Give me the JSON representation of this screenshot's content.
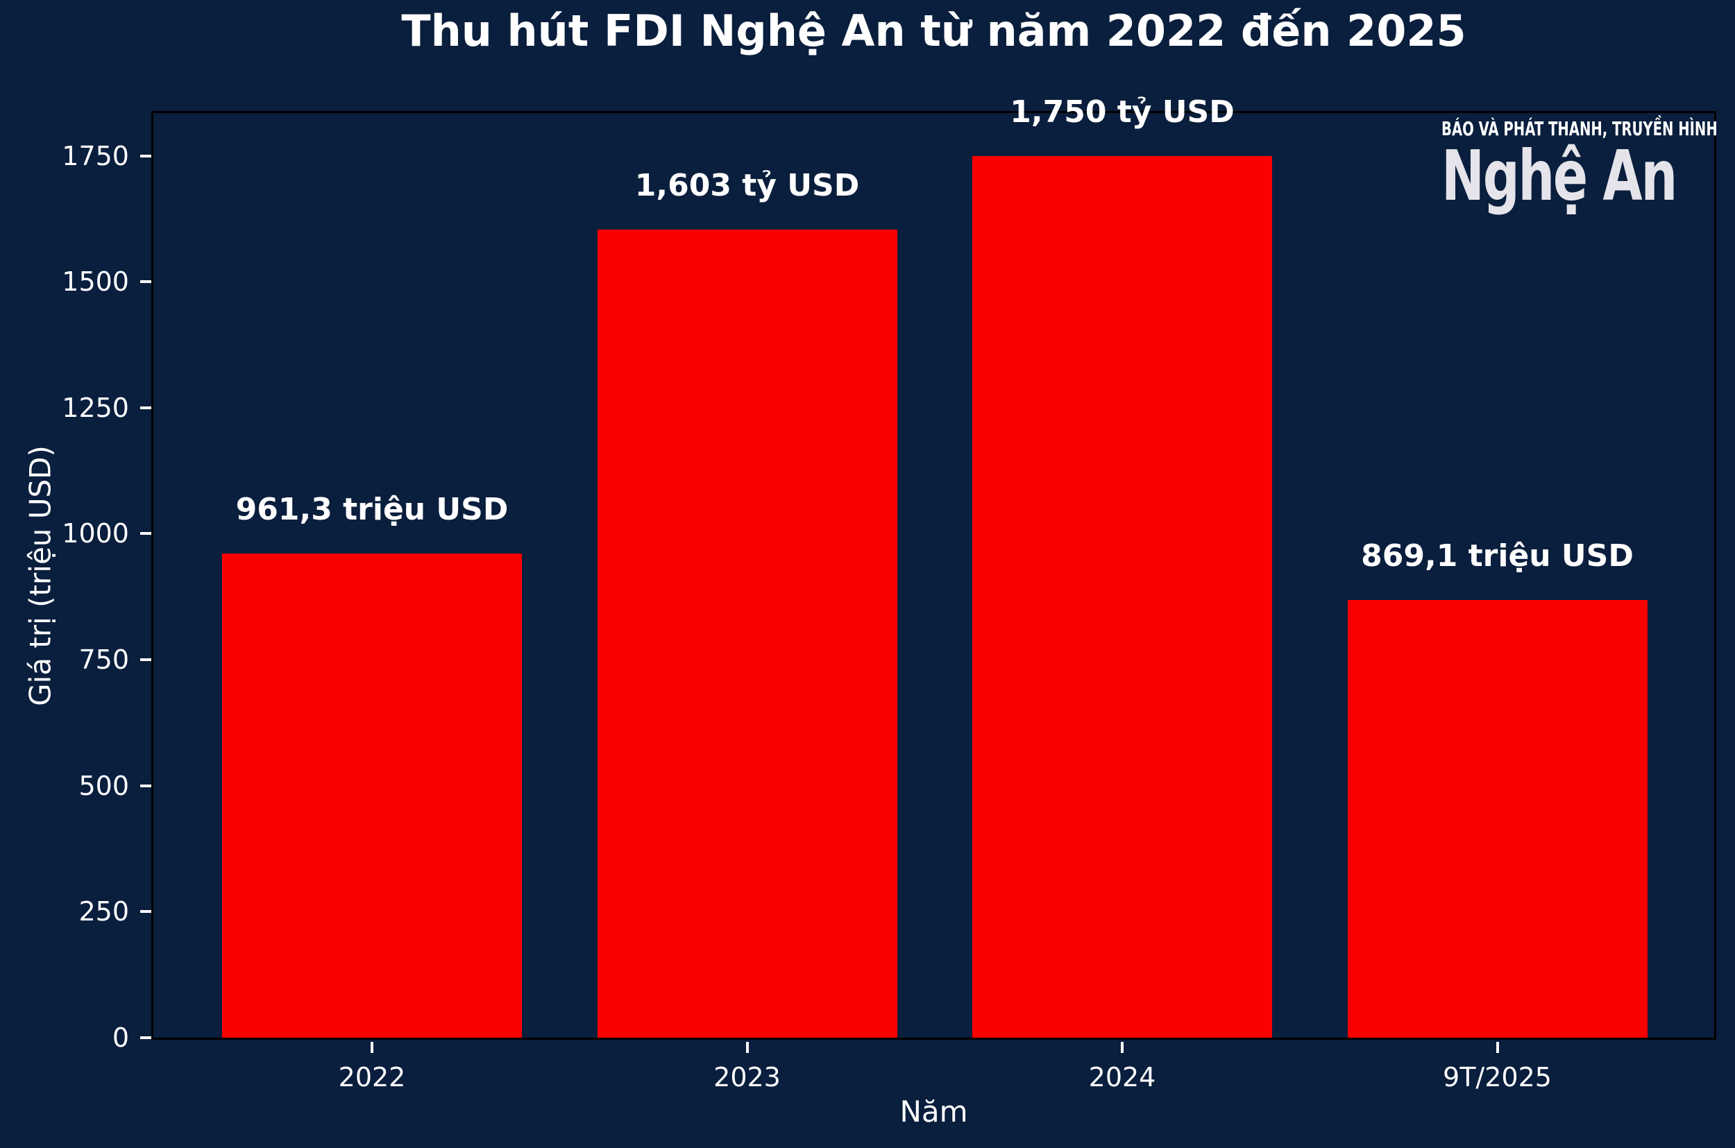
{
  "title": "Thu hút FDI Nghệ An từ năm 2022 đến 2025",
  "logo": {
    "tagline": "BÁO VÀ PHÁT THANH, TRUYỀN HÌNH",
    "name": "Nghệ An"
  },
  "chart_data": {
    "type": "bar",
    "title": "Thu hút FDI Nghệ An từ năm 2022 đến 2025",
    "categories": [
      "2022",
      "2023",
      "2024",
      "9T/2025"
    ],
    "values": [
      961.3,
      1603,
      1750,
      869.1
    ],
    "bar_labels": [
      "961,3 triệu USD",
      "1,603 tỷ USD",
      "1,750 tỷ USD",
      "869,1 triệu USD"
    ],
    "xlabel": "Năm",
    "ylabel": "Giá trị (triệu USD)",
    "yticks": [
      0,
      250,
      500,
      750,
      1000,
      1250,
      1500,
      1750
    ],
    "ylim": [
      0,
      1843
    ],
    "grid": false,
    "legend": null,
    "colors": {
      "bar": "#fc0000",
      "background": "#0a1e3d",
      "text": "#ffffff",
      "spine": "#000000",
      "tick": "#ffffff",
      "logo_name": "#e4e4ea"
    }
  }
}
